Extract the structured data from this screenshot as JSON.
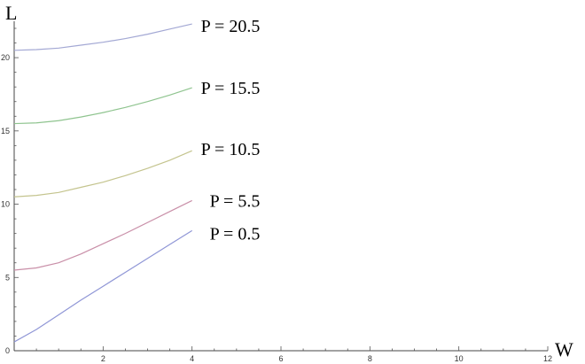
{
  "chart_data": {
    "type": "line",
    "title": "",
    "xlabel": "W",
    "ylabel": "L",
    "xlim": [
      0,
      12
    ],
    "ylim": [
      0,
      22
    ],
    "grid": false,
    "legend": "none (series labels placed at line ends)",
    "x_ticks": [
      "2",
      "4",
      "6",
      "8",
      "10",
      "12"
    ],
    "y_ticks": [
      "0",
      "5",
      "10",
      "15",
      "20"
    ],
    "x": [
      0,
      0.5,
      1,
      1.5,
      2,
      2.5,
      3,
      3.5,
      4
    ],
    "series": [
      {
        "name": "P = 0.5",
        "color": "#8f96d6",
        "values": [
          0.6,
          1.45,
          2.45,
          3.45,
          4.4,
          5.35,
          6.3,
          7.25,
          8.2
        ]
      },
      {
        "name": "P = 5.5",
        "color": "#c98fa8",
        "values": [
          5.5,
          5.65,
          6.0,
          6.6,
          7.3,
          8.0,
          8.75,
          9.5,
          10.25
        ]
      },
      {
        "name": "P = 10.5",
        "color": "#c4c48e",
        "values": [
          10.5,
          10.6,
          10.8,
          11.15,
          11.5,
          11.95,
          12.45,
          13.0,
          13.65
        ]
      },
      {
        "name": "P = 15.5",
        "color": "#8fc48f",
        "values": [
          15.5,
          15.55,
          15.7,
          15.95,
          16.25,
          16.6,
          17.0,
          17.45,
          17.95
        ]
      },
      {
        "name": "P = 20.5",
        "color": "#a3a8d4",
        "values": [
          20.5,
          20.55,
          20.65,
          20.85,
          21.05,
          21.3,
          21.6,
          21.95,
          22.3
        ]
      }
    ]
  }
}
